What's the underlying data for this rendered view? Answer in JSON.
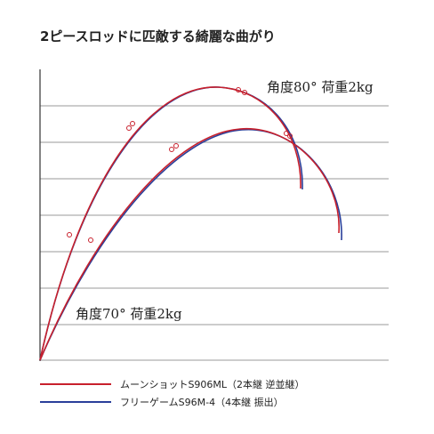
{
  "title": "2ピースロッドに匹敵する綺麗な曲がり",
  "labels": {
    "upper": "角度80° 荷重2kg",
    "lower": "角度70° 荷重2kg"
  },
  "legend": [
    {
      "name": "ムーンショットS906ML（2本継 逆並継）",
      "color": "#c8202c"
    },
    {
      "name": "フリーゲームS96M-4（4本継 振出）",
      "color": "#2a3f9a"
    }
  ]
}
